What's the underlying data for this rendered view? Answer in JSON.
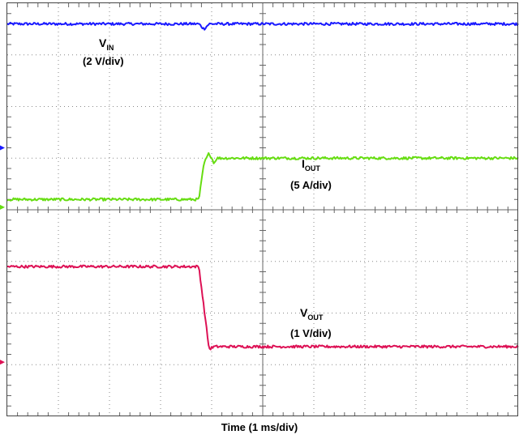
{
  "chart_data": {
    "type": "line",
    "xlabel": "Time (1 ms/div)",
    "grid": true,
    "divisions": {
      "x": 10,
      "y": 8
    },
    "x_unit_per_div": "1 ms",
    "series": [
      {
        "name_main": "V",
        "name_sub": "IN",
        "scale": "(2 V/div)",
        "color": "#1a1aff",
        "points": [
          [
            0,
            7.6
          ],
          [
            3.75,
            7.6
          ],
          [
            3.85,
            7.5
          ],
          [
            3.95,
            7.6
          ],
          [
            10,
            7.6
          ]
        ]
      },
      {
        "name_main": "I",
        "name_sub": "OUT",
        "scale": "(5 A/div)",
        "color": "#66dd11",
        "points": [
          [
            0,
            4.2
          ],
          [
            3.75,
            4.2
          ],
          [
            3.85,
            4.9
          ],
          [
            3.95,
            5.1
          ],
          [
            4.05,
            4.9
          ],
          [
            4.1,
            5.0
          ],
          [
            10,
            5.0
          ]
        ]
      },
      {
        "name_main": "V",
        "name_sub": "OUT",
        "scale": "(1 V/div)",
        "color": "#dd1155",
        "points": [
          [
            0,
            2.9
          ],
          [
            3.75,
            2.9
          ],
          [
            3.85,
            2.1
          ],
          [
            3.95,
            1.3
          ],
          [
            4.05,
            1.35
          ],
          [
            10,
            1.35
          ]
        ]
      }
    ],
    "ground_markers": [
      {
        "color": "#1a1aff",
        "level": 5.2
      },
      {
        "color": "#66dd11",
        "level": 4.05
      },
      {
        "color": "#dd1155",
        "level": 1.05
      }
    ]
  }
}
